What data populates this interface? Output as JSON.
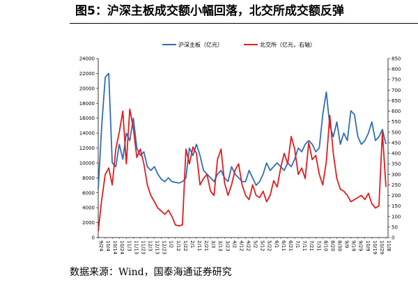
{
  "page": {
    "title": "图5：沪深主板成交额小幅回落，北交所成交额反弹",
    "source": "数据来源：Wind，国泰海通证券研究"
  },
  "colors": {
    "series_main": "#2f6cb5",
    "series_bse": "#e31a1c",
    "axis": "#000000",
    "rule": "#000000"
  },
  "chart_data": {
    "type": "line",
    "title": "",
    "legend": {
      "position": "top-center"
    },
    "grid": false,
    "x_tick_labels": [
      "9/24",
      "10/4",
      "10/14",
      "10/24",
      "11/3",
      "11/13",
      "11/23",
      "12/3",
      "12/13",
      "12/23",
      "1/2",
      "1/12",
      "1/22",
      "2/1",
      "2/11",
      "2/21",
      "3/3",
      "3/13",
      "3/23",
      "4/2",
      "4/12",
      "4/22",
      "5/2",
      "5/12",
      "5/22",
      "6/1",
      "6/11",
      "6/21",
      "7/1",
      "7/11",
      "7/21",
      "7/31",
      "8/10",
      "8/20",
      "8/30",
      "9/9",
      "9/19",
      "9/29",
      "10/9",
      "10/19",
      "10/29",
      "11/8"
    ],
    "left_axis": {
      "label": "",
      "ylim": [
        0,
        24000
      ],
      "ticks": [
        0,
        2000,
        4000,
        6000,
        8000,
        10000,
        12000,
        14000,
        16000,
        18000,
        20000,
        22000,
        24000
      ]
    },
    "right_axis": {
      "label": "",
      "ylim": [
        0,
        850
      ],
      "ticks": [
        0,
        50,
        100,
        150,
        200,
        250,
        300,
        350,
        400,
        450,
        500,
        550,
        600,
        650,
        700,
        750,
        800,
        850
      ]
    },
    "series": [
      {
        "name": "沪深主板（亿元）",
        "axis": "left",
        "x": [
          0,
          0.5,
          1,
          1.5,
          2,
          2.5,
          3,
          3.5,
          4,
          4.5,
          5,
          5.5,
          6,
          6.5,
          7,
          7.5,
          8,
          8.5,
          9,
          9.5,
          10,
          10.5,
          11,
          11.5,
          12,
          12.5,
          13,
          13.5,
          14,
          14.5,
          15,
          15.5,
          16,
          16.5,
          17,
          17.5,
          18,
          18.5,
          19,
          19.5,
          20,
          20.5,
          21,
          21.5,
          22,
          22.5,
          23,
          23.5,
          24,
          24.5,
          25,
          25.5,
          26,
          26.5,
          27,
          27.5,
          28,
          28.5,
          29,
          29.5,
          30,
          30.5,
          31,
          31.5,
          32,
          32.5,
          33,
          33.5,
          34,
          34.5,
          35,
          35.5,
          36,
          36.5,
          37,
          37.5,
          38,
          38.5,
          39,
          39.5,
          40,
          40.5,
          41
        ],
        "values": [
          6500,
          15000,
          21500,
          22000,
          10000,
          9500,
          12500,
          10500,
          14000,
          13000,
          16000,
          12000,
          11000,
          11500,
          9500,
          9000,
          9500,
          8500,
          7800,
          7500,
          8000,
          7500,
          7400,
          7300,
          7500,
          8000,
          12000,
          11000,
          12500,
          11000,
          9000,
          8500,
          8000,
          7500,
          8500,
          9000,
          8000,
          7500,
          9500,
          8500,
          8000,
          7500,
          7500,
          9000,
          8000,
          7000,
          7500,
          8500,
          10000,
          9000,
          9500,
          10000,
          9500,
          9000,
          10000,
          9500,
          10500,
          12000,
          11500,
          12500,
          13000,
          12500,
          11500,
          12000,
          16500,
          19500,
          15000,
          13500,
          15500,
          12500,
          14000,
          13000,
          17000,
          16500,
          13500,
          12500,
          13000,
          14000,
          15500,
          13000,
          13500,
          14500,
          12500
        ]
      },
      {
        "name": "北交所（亿元，右轴）",
        "axis": "right",
        "x": [
          0,
          0.5,
          1,
          1.5,
          2,
          2.5,
          3,
          3.5,
          4,
          4.5,
          5,
          5.5,
          6,
          6.5,
          7,
          7.5,
          8,
          8.5,
          9,
          9.5,
          10,
          10.5,
          11,
          11.5,
          12,
          12.5,
          13,
          13.5,
          14,
          14.5,
          15,
          15.5,
          16,
          16.5,
          17,
          17.5,
          18,
          18.5,
          19,
          19.5,
          20,
          20.5,
          21,
          21.5,
          22,
          22.5,
          23,
          23.5,
          24,
          24.5,
          25,
          25.5,
          26,
          26.5,
          27,
          27.5,
          28,
          28.5,
          29,
          29.5,
          30,
          30.5,
          31,
          31.5,
          32,
          32.5,
          33,
          33.5,
          34,
          34.5,
          35,
          35.5,
          36,
          36.5,
          37,
          37.5,
          38,
          38.5,
          39,
          39.5,
          40,
          40.5,
          41
        ],
        "values": [
          30,
          180,
          300,
          330,
          250,
          420,
          500,
          600,
          350,
          610,
          520,
          380,
          420,
          350,
          250,
          200,
          170,
          140,
          125,
          110,
          130,
          100,
          60,
          55,
          60,
          420,
          350,
          430,
          400,
          250,
          280,
          300,
          220,
          200,
          370,
          420,
          260,
          200,
          250,
          320,
          350,
          250,
          200,
          180,
          250,
          200,
          190,
          220,
          170,
          200,
          270,
          240,
          330,
          400,
          350,
          480,
          420,
          300,
          330,
          280,
          450,
          370,
          390,
          300,
          250,
          360,
          580,
          400,
          280,
          230,
          220,
          200,
          170,
          180,
          190,
          200,
          180,
          210,
          160,
          140,
          150,
          500,
          240
        ]
      }
    ]
  }
}
